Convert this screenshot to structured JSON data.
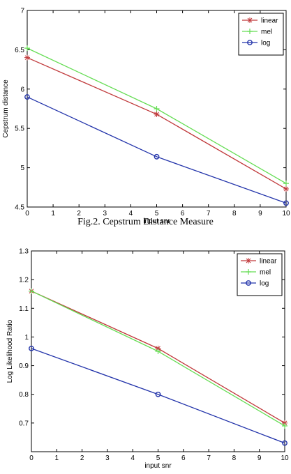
{
  "caption": "Fig.2. Cepstrum Distance Measure",
  "chart_data": [
    {
      "type": "line",
      "xlabel": "input snr",
      "ylabel": "Cepstrum distance",
      "xlim": [
        0,
        10
      ],
      "ylim": [
        4.5,
        7
      ],
      "xticks": [
        "0",
        "1",
        "2",
        "3",
        "4",
        "5",
        "6",
        "7",
        "8",
        "9",
        "10"
      ],
      "yticks": [
        "4.5",
        "5",
        "5.5",
        "6",
        "6.5",
        "7"
      ],
      "legend_position": "top-right",
      "grid": false,
      "series": [
        {
          "name": "linear",
          "color": "#c0393b",
          "marker": "star",
          "x": [
            0,
            5,
            10
          ],
          "y": [
            6.4,
            5.68,
            4.73
          ]
        },
        {
          "name": "mel",
          "color": "#66dd55",
          "marker": "plus",
          "x": [
            0,
            5,
            10
          ],
          "y": [
            6.52,
            5.75,
            4.8
          ]
        },
        {
          "name": "log",
          "color": "#2233aa",
          "marker": "circle",
          "x": [
            0,
            5,
            10
          ],
          "y": [
            5.9,
            5.14,
            4.55
          ]
        }
      ]
    },
    {
      "type": "line",
      "xlabel": "input snr",
      "ylabel": "Log Likelihood Ratio",
      "xlim": [
        0,
        10
      ],
      "ylim": [
        0.6,
        1.3
      ],
      "xticks": [
        "0",
        "1",
        "2",
        "3",
        "4",
        "5",
        "6",
        "7",
        "8",
        "9",
        "10"
      ],
      "yticks": [
        "0.7",
        "0.8",
        "0.9",
        "1",
        "1.1",
        "1.2",
        "1.3"
      ],
      "legend_position": "top-right",
      "grid": false,
      "series": [
        {
          "name": "linear",
          "color": "#c0393b",
          "marker": "star",
          "x": [
            0,
            5,
            10
          ],
          "y": [
            1.16,
            0.96,
            0.7
          ]
        },
        {
          "name": "mel",
          "color": "#66dd55",
          "marker": "plus",
          "x": [
            0,
            5,
            10
          ],
          "y": [
            1.16,
            0.95,
            0.69
          ]
        },
        {
          "name": "log",
          "color": "#2233aa",
          "marker": "circle",
          "x": [
            0,
            5,
            10
          ],
          "y": [
            0.96,
            0.8,
            0.63
          ]
        }
      ]
    }
  ]
}
